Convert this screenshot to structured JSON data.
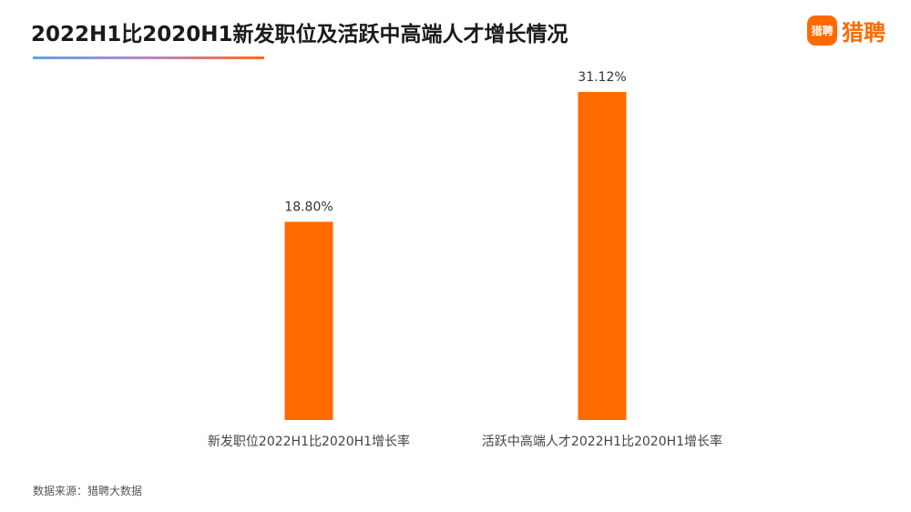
{
  "header": {
    "title": "2022H1比2020H1新发职位及活跃中高端人才增长情况"
  },
  "logo": {
    "badge_text": "猎聘",
    "text": "猎聘"
  },
  "footer": {
    "source": "数据来源：猎聘大数据"
  },
  "colors": {
    "bar": "#ff6a00"
  },
  "chart_data": {
    "type": "bar",
    "title": "2022H1比2020H1新发职位及活跃中高端人才增长情况",
    "xlabel": "",
    "ylabel": "",
    "categories": [
      "新发职位2022H1比2020H1增长率",
      "活跃中高端人才2022H1比2020H1增长率"
    ],
    "values": [
      18.8,
      31.12
    ],
    "value_labels": [
      "18.80%",
      "31.12%"
    ],
    "unit": "%",
    "ylim": [
      0,
      35
    ],
    "grid": false,
    "legend": "none"
  }
}
